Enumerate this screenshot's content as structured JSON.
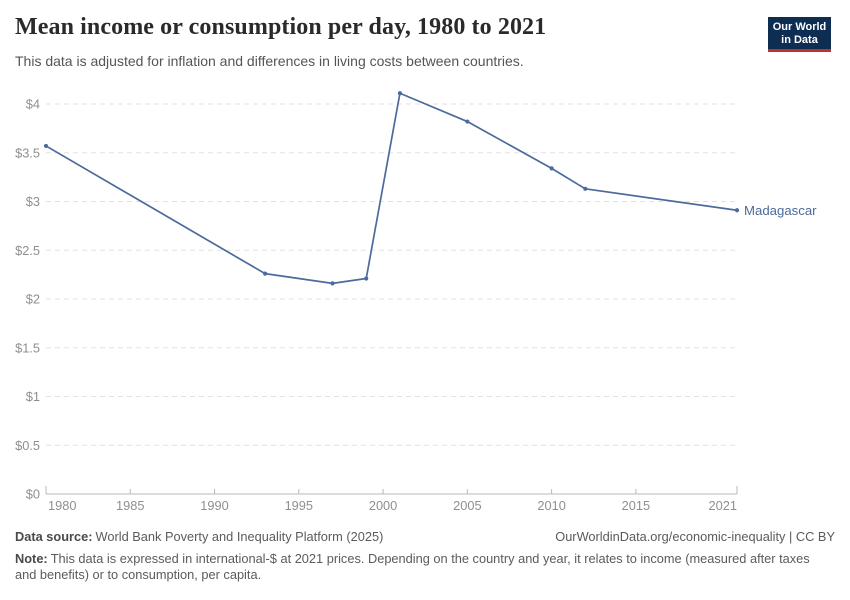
{
  "header": {
    "title": "Mean income or consumption per day, 1980 to 2021",
    "subtitle": "This data is adjusted for inflation and differences in living costs between countries.",
    "logo": {
      "line1": "Our World",
      "line2": "in Data",
      "bg_color": "#0d2e52",
      "accent_color": "#c0332c"
    }
  },
  "chart_data": {
    "type": "line",
    "title": "Mean income or consumption per day, 1980 to 2021",
    "x": [
      1980,
      1993,
      1997,
      1999,
      2001,
      2005,
      2010,
      2012,
      2021
    ],
    "series": [
      {
        "name": "Madagascar",
        "values": [
          3.57,
          2.26,
          2.16,
          2.21,
          4.11,
          3.82,
          3.34,
          3.13,
          2.91
        ]
      }
    ],
    "xlabel": "",
    "ylabel": "",
    "xlim": [
      1980,
      2021
    ],
    "ylim": [
      0,
      4.25
    ],
    "x_ticks": [
      1980,
      1985,
      1990,
      1995,
      2000,
      2005,
      2010,
      2015,
      2021
    ],
    "y_ticks": [
      0,
      0.5,
      1,
      1.5,
      2,
      2.5,
      3,
      3.5,
      4
    ],
    "y_tick_labels": [
      "$0",
      "$0.5",
      "$1",
      "$1.5",
      "$2",
      "$2.5",
      "$3",
      "$3.5",
      "$4"
    ],
    "grid": "horizontal-dashed",
    "legend_position": "end-of-line",
    "end_label": "Madagascar",
    "colors": {
      "line": "#4c6a9c",
      "grid": "#e2e2e2",
      "axis": "#b9b9b9",
      "axis_text": "#8f8f8f"
    }
  },
  "footer": {
    "data_source_label": "Data source:",
    "data_source_value": "World Bank Poverty and Inequality Platform (2025)",
    "citation": "OurWorldinData.org/economic-inequality | CC BY",
    "note_label": "Note:",
    "note_text": "This data is expressed in international-$ at 2021 prices. Depending on the country and year, it relates to income (measured after taxes and benefits) or to consumption, per capita."
  }
}
